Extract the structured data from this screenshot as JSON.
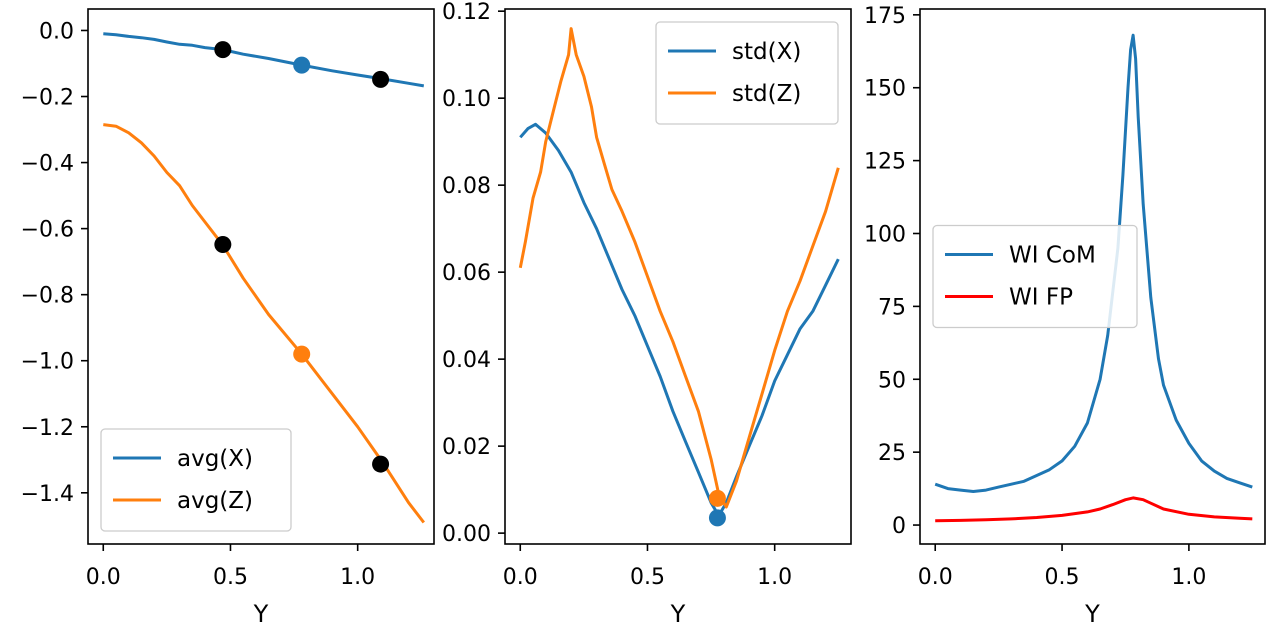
{
  "chart_data": [
    {
      "type": "line",
      "xlabel": "Y",
      "ylabel": "",
      "xlim": [
        -0.06,
        1.3
      ],
      "ylim": [
        -1.555,
        0.065
      ],
      "xticks": [
        0.0,
        0.5,
        1.0
      ],
      "xtick_labels": [
        "0.0",
        "0.5",
        "1.0"
      ],
      "yticks": [
        0.0,
        -0.2,
        -0.4,
        -0.6,
        -0.8,
        -1.0,
        -1.2,
        -1.4
      ],
      "ytick_labels": [
        "0.0",
        "−0.2",
        "−0.4",
        "−0.6",
        "−0.8",
        "−1.0",
        "−1.2",
        "−1.4"
      ],
      "legend_position": "lower-left",
      "series": [
        {
          "name": "avg(X)",
          "color": "#1f77b4",
          "x": [
            0.0,
            0.05,
            0.1,
            0.15,
            0.2,
            0.25,
            0.3,
            0.35,
            0.4,
            0.47,
            0.55,
            0.65,
            0.78,
            0.9,
            1.0,
            1.1,
            1.2,
            1.26
          ],
          "y": [
            -0.01,
            -0.013,
            -0.018,
            -0.022,
            -0.027,
            -0.035,
            -0.042,
            -0.045,
            -0.052,
            -0.058,
            -0.072,
            -0.085,
            -0.105,
            -0.122,
            -0.135,
            -0.147,
            -0.16,
            -0.168
          ]
        },
        {
          "name": "avg(Z)",
          "color": "#ff7f0e",
          "x": [
            0.0,
            0.05,
            0.1,
            0.15,
            0.2,
            0.25,
            0.3,
            0.35,
            0.4,
            0.47,
            0.55,
            0.65,
            0.78,
            0.9,
            1.0,
            1.1,
            1.2,
            1.26
          ],
          "y": [
            -0.285,
            -0.29,
            -0.31,
            -0.34,
            -0.38,
            -0.43,
            -0.47,
            -0.53,
            -0.58,
            -0.65,
            -0.75,
            -0.86,
            -0.98,
            -1.1,
            -1.2,
            -1.31,
            -1.43,
            -1.49
          ]
        }
      ],
      "markers": [
        {
          "x": 0.47,
          "y": -0.058,
          "color": "#000000"
        },
        {
          "x": 0.78,
          "y": -0.105,
          "color": "#1f77b4"
        },
        {
          "x": 1.09,
          "y": -0.148,
          "color": "#000000"
        },
        {
          "x": 0.47,
          "y": -0.648,
          "color": "#000000"
        },
        {
          "x": 0.78,
          "y": -0.98,
          "color": "#ff7f0e"
        },
        {
          "x": 1.09,
          "y": -1.313,
          "color": "#000000"
        }
      ]
    },
    {
      "type": "line",
      "xlabel": "Y",
      "ylabel": "",
      "xlim": [
        -0.06,
        1.3
      ],
      "ylim": [
        -0.0025,
        0.1205
      ],
      "xticks": [
        0.0,
        0.5,
        1.0
      ],
      "xtick_labels": [
        "0.0",
        "0.5",
        "1.0"
      ],
      "yticks": [
        0.0,
        0.02,
        0.04,
        0.06,
        0.08,
        0.1,
        0.12
      ],
      "ytick_labels": [
        "0.00",
        "0.02",
        "0.04",
        "0.06",
        "0.08",
        "0.10",
        "0.12"
      ],
      "legend_position": "top-right",
      "series": [
        {
          "name": "std(X)",
          "color": "#1f77b4",
          "x": [
            0.0,
            0.03,
            0.06,
            0.1,
            0.15,
            0.2,
            0.25,
            0.3,
            0.35,
            0.4,
            0.45,
            0.5,
            0.55,
            0.6,
            0.65,
            0.7,
            0.75,
            0.78,
            0.81,
            0.85,
            0.9,
            0.95,
            1.0,
            1.05,
            1.1,
            1.15,
            1.2,
            1.25
          ],
          "y": [
            0.091,
            0.093,
            0.094,
            0.092,
            0.088,
            0.083,
            0.076,
            0.07,
            0.063,
            0.056,
            0.05,
            0.043,
            0.036,
            0.028,
            0.021,
            0.014,
            0.007,
            0.004,
            0.007,
            0.013,
            0.02,
            0.027,
            0.035,
            0.041,
            0.047,
            0.051,
            0.057,
            0.063
          ]
        },
        {
          "name": "std(Z)",
          "color": "#ff7f0e",
          "x": [
            0.0,
            0.02,
            0.05,
            0.08,
            0.1,
            0.13,
            0.16,
            0.19,
            0.2,
            0.22,
            0.25,
            0.28,
            0.3,
            0.33,
            0.36,
            0.4,
            0.45,
            0.5,
            0.55,
            0.6,
            0.65,
            0.7,
            0.75,
            0.78,
            0.81,
            0.85,
            0.9,
            0.95,
            1.0,
            1.05,
            1.1,
            1.15,
            1.2,
            1.25
          ],
          "y": [
            0.061,
            0.067,
            0.077,
            0.083,
            0.09,
            0.097,
            0.104,
            0.11,
            0.116,
            0.11,
            0.105,
            0.098,
            0.091,
            0.085,
            0.079,
            0.074,
            0.067,
            0.059,
            0.051,
            0.044,
            0.036,
            0.028,
            0.017,
            0.009,
            0.006,
            0.012,
            0.022,
            0.032,
            0.042,
            0.051,
            0.058,
            0.066,
            0.074,
            0.084
          ]
        }
      ],
      "markers": [
        {
          "x": 0.775,
          "y": 0.008,
          "color": "#ff7f0e"
        },
        {
          "x": 0.775,
          "y": 0.0035,
          "color": "#1f77b4"
        }
      ]
    },
    {
      "type": "line",
      "xlabel": "Y",
      "ylabel": "",
      "xlim": [
        -0.06,
        1.3
      ],
      "ylim": [
        -6.5,
        177
      ],
      "xticks": [
        0.0,
        0.5,
        1.0
      ],
      "xtick_labels": [
        "0.0",
        "0.5",
        "1.0"
      ],
      "yticks": [
        0,
        25,
        50,
        75,
        100,
        125,
        150,
        175
      ],
      "ytick_labels": [
        "0",
        "25",
        "50",
        "75",
        "100",
        "125",
        "150",
        "175"
      ],
      "legend_position": "center-left",
      "series": [
        {
          "name": "WI CoM",
          "color": "#1f77b4",
          "x": [
            0.0,
            0.05,
            0.1,
            0.15,
            0.2,
            0.25,
            0.3,
            0.35,
            0.4,
            0.45,
            0.5,
            0.55,
            0.6,
            0.65,
            0.68,
            0.72,
            0.74,
            0.76,
            0.77,
            0.78,
            0.79,
            0.8,
            0.82,
            0.85,
            0.88,
            0.9,
            0.95,
            1.0,
            1.05,
            1.1,
            1.15,
            1.2,
            1.25
          ],
          "y": [
            14,
            12.5,
            12,
            11.5,
            12,
            13,
            14,
            15,
            17,
            19,
            22,
            27,
            35,
            50,
            65,
            95,
            120,
            150,
            163,
            168,
            160,
            140,
            110,
            78,
            57,
            48,
            36,
            28,
            22,
            18.5,
            16,
            14.5,
            13
          ]
        },
        {
          "name": "WI FP",
          "color": "#ff0000",
          "x": [
            0.0,
            0.1,
            0.2,
            0.3,
            0.4,
            0.5,
            0.6,
            0.65,
            0.7,
            0.75,
            0.78,
            0.82,
            0.85,
            0.9,
            1.0,
            1.1,
            1.2,
            1.25
          ],
          "y": [
            1.5,
            1.6,
            1.8,
            2.1,
            2.6,
            3.3,
            4.5,
            5.5,
            7.0,
            8.7,
            9.3,
            8.7,
            7.5,
            5.5,
            3.7,
            2.8,
            2.3,
            2.1
          ]
        }
      ],
      "markers": []
    }
  ]
}
